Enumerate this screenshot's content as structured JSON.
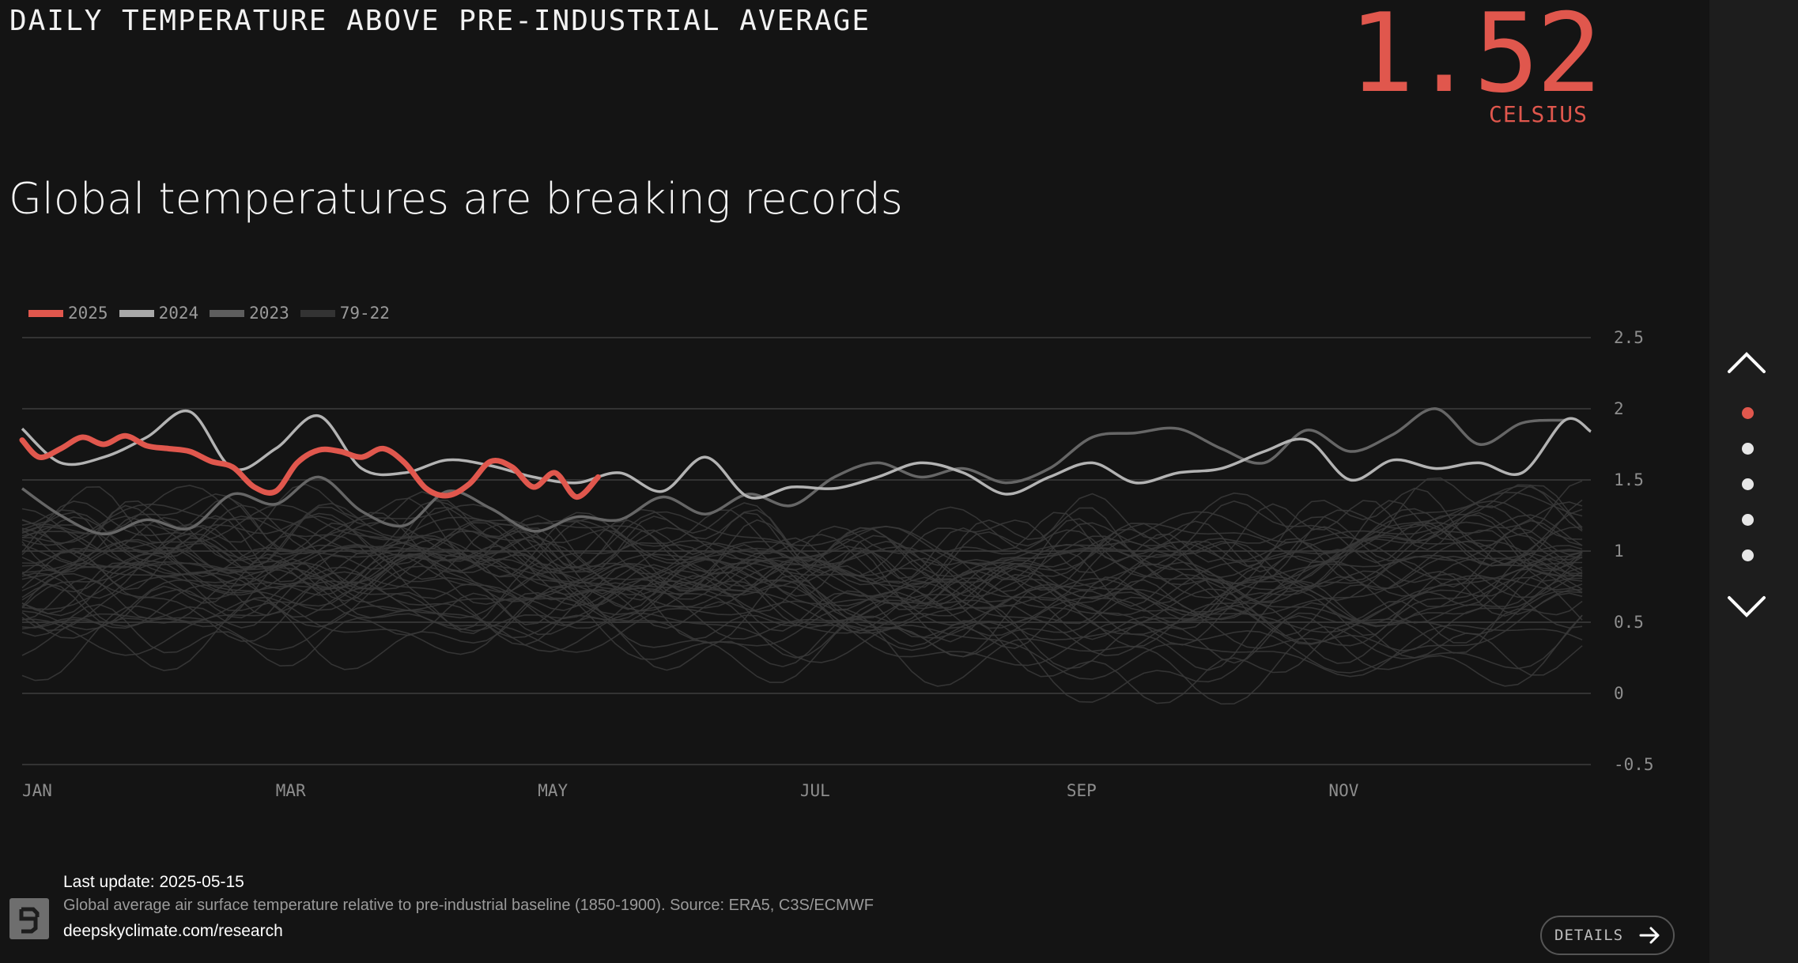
{
  "header": {
    "metric_title": "DAILY TEMPERATURE ABOVE PRE-INDUSTRIAL AVERAGE",
    "value": "1.52",
    "unit": "CELSIUS",
    "headline": "Global temperatures are breaking records"
  },
  "legend": [
    {
      "label": "2025",
      "color": "#e0574d"
    },
    {
      "label": "2024",
      "color": "#a9a9a9"
    },
    {
      "label": "2023",
      "color": "#5e5e5e"
    },
    {
      "label": "79-22",
      "color": "#333333"
    }
  ],
  "chart_data": {
    "type": "line",
    "x_unit": "day of year",
    "xlim": [
      1,
      366
    ],
    "ylim": [
      -0.5,
      2.5
    ],
    "y_ticks": [
      2.5,
      2,
      1.5,
      1,
      0.5,
      0,
      -0.5
    ],
    "y_tick_labels": [
      "2.5",
      "2",
      "1.5",
      "1",
      "0.5",
      "0",
      "-0.5"
    ],
    "x_ticks": [
      {
        "label": "JAN",
        "day": 1
      },
      {
        "label": "MAR",
        "day": 60
      },
      {
        "label": "MAY",
        "day": 121
      },
      {
        "label": "JUL",
        "day": 182
      },
      {
        "label": "SEP",
        "day": 244
      },
      {
        "label": "NOV",
        "day": 305
      }
    ],
    "grid": true,
    "legend_position": "top-left",
    "series": [
      {
        "name": "2025",
        "color": "#e0574d",
        "x": [
          1,
          5,
          10,
          15,
          20,
          25,
          30,
          35,
          40,
          45,
          50,
          55,
          60,
          65,
          70,
          75,
          80,
          85,
          90,
          95,
          100,
          105,
          110,
          115,
          120,
          125,
          130,
          135
        ],
        "y": [
          1.78,
          1.66,
          1.72,
          1.8,
          1.75,
          1.81,
          1.74,
          1.72,
          1.7,
          1.63,
          1.59,
          1.45,
          1.42,
          1.62,
          1.71,
          1.7,
          1.66,
          1.72,
          1.62,
          1.44,
          1.39,
          1.47,
          1.63,
          1.59,
          1.45,
          1.55,
          1.38,
          1.52
        ]
      },
      {
        "name": "2024",
        "color": "#b3b3b3",
        "x": [
          1,
          10,
          20,
          30,
          40,
          50,
          60,
          70,
          80,
          90,
          100,
          110,
          120,
          130,
          140,
          150,
          160,
          170,
          180,
          190,
          200,
          210,
          220,
          230,
          240,
          250,
          260,
          270,
          280,
          290,
          300,
          310,
          320,
          330,
          340,
          350,
          360,
          366
        ],
        "y": [
          1.86,
          1.62,
          1.66,
          1.8,
          1.98,
          1.58,
          1.72,
          1.95,
          1.58,
          1.55,
          1.64,
          1.6,
          1.52,
          1.48,
          1.55,
          1.42,
          1.66,
          1.38,
          1.45,
          1.44,
          1.52,
          1.62,
          1.55,
          1.4,
          1.52,
          1.62,
          1.48,
          1.55,
          1.58,
          1.7,
          1.78,
          1.5,
          1.64,
          1.58,
          1.62,
          1.55,
          1.92,
          1.84
        ]
      },
      {
        "name": "2023",
        "color": "#666666",
        "x": [
          1,
          10,
          20,
          30,
          40,
          50,
          60,
          70,
          80,
          90,
          100,
          110,
          120,
          130,
          140,
          150,
          160,
          170,
          180,
          190,
          200,
          210,
          220,
          230,
          240,
          250,
          260,
          270,
          280,
          290,
          300,
          310,
          320,
          330,
          340,
          350,
          360
        ],
        "y": [
          1.44,
          1.25,
          1.12,
          1.22,
          1.16,
          1.4,
          1.33,
          1.52,
          1.28,
          1.18,
          1.42,
          1.3,
          1.14,
          1.24,
          1.22,
          1.38,
          1.26,
          1.4,
          1.32,
          1.52,
          1.62,
          1.52,
          1.58,
          1.48,
          1.58,
          1.8,
          1.83,
          1.86,
          1.72,
          1.62,
          1.85,
          1.7,
          1.82,
          2.0,
          1.75,
          1.9,
          1.92
        ]
      },
      {
        "name": "79-22",
        "color": "#3a3a3a",
        "x": [
          1,
          46,
          91,
          137,
          183,
          229,
          274,
          320,
          366
        ],
        "y_low": [
          0.25,
          0.3,
          0.35,
          0.3,
          0.25,
          0.15,
          0.0,
          0.1,
          0.25
        ],
        "y_high": [
          1.35,
          1.35,
          1.3,
          1.25,
          1.15,
          1.2,
          1.3,
          1.4,
          1.45
        ]
      }
    ]
  },
  "footer": {
    "last_update_label": "Last update:",
    "last_update_value": "2025-05-15",
    "description": "Global average air surface temperature relative to pre-industrial baseline (1850-1900). Source: ERA5, C3S/ECMWF",
    "link": "deepskyclimate.com/research",
    "details_label": "DETAILS"
  },
  "nav": {
    "dots": 5,
    "active_dot": 0
  }
}
